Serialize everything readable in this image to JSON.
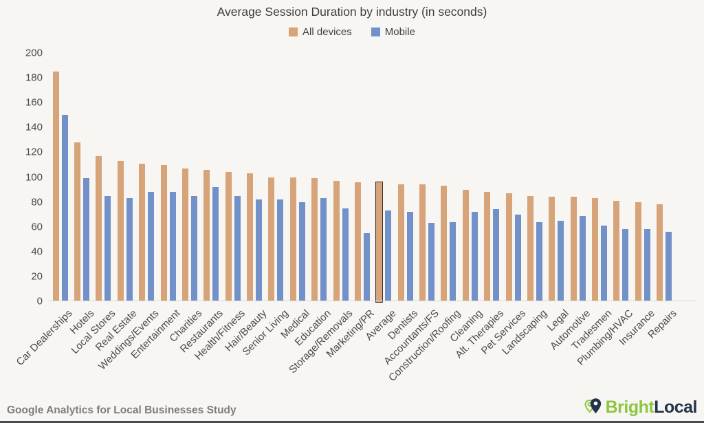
{
  "title": "Average Session Duration by industry (in seconds)",
  "colors": {
    "background": "#f7f6f3",
    "all_devices": "#d6a478",
    "mobile": "#7291c9",
    "highlight_outline": "#2e2e2e",
    "axis_text": "#4a4a4a",
    "brand_green": "#8dc63f",
    "brand_navy": "#22344b"
  },
  "footer": {
    "source": "Google Analytics for Local Businesses Study",
    "brand_bright": "Bright",
    "brand_local": "Local"
  },
  "chart_data": {
    "type": "bar",
    "title": "Average Session Duration by industry (in seconds)",
    "xlabel": "",
    "ylabel": "",
    "ylim": [
      0,
      200
    ],
    "yticks": [
      0,
      20,
      40,
      60,
      80,
      100,
      120,
      140,
      160,
      180,
      200
    ],
    "grid": false,
    "legend_position": "top",
    "highlighted_category": "Average",
    "categories": [
      "Car Dealerships",
      "Hotels",
      "Local Stores",
      "Real Estate",
      "Weddings/Events",
      "Entertainment",
      "Charities",
      "Restaurants",
      "Health/Fitness",
      "Hair/Beauty",
      "Senior Living",
      "Medical",
      "Education",
      "Storage/Removals",
      "Marketing/PR",
      "Average",
      "Dentists",
      "Accountants/FS",
      "Construction/Roofing",
      "Cleaning",
      "Alt. Therapies",
      "Pet Services",
      "Landscaping",
      "Legal",
      "Automotive",
      "Tradesmen",
      "Plumbing/HVAC",
      "Insurance",
      "Repairs"
    ],
    "series": [
      {
        "name": "All devices",
        "color": "#d6a478",
        "values": [
          185,
          128,
          117,
          113,
          111,
          110,
          107,
          106,
          104,
          103,
          100,
          100,
          99,
          97,
          96,
          96,
          94,
          94,
          93,
          90,
          88,
          87,
          85,
          84,
          84,
          83,
          81,
          80,
          78
        ]
      },
      {
        "name": "Mobile",
        "color": "#7291c9",
        "values": [
          150,
          99,
          85,
          83,
          88,
          88,
          85,
          92,
          85,
          82,
          82,
          80,
          83,
          75,
          55,
          73,
          72,
          63,
          64,
          72,
          74,
          70,
          64,
          65,
          69,
          61,
          58,
          58,
          56
        ]
      }
    ]
  }
}
